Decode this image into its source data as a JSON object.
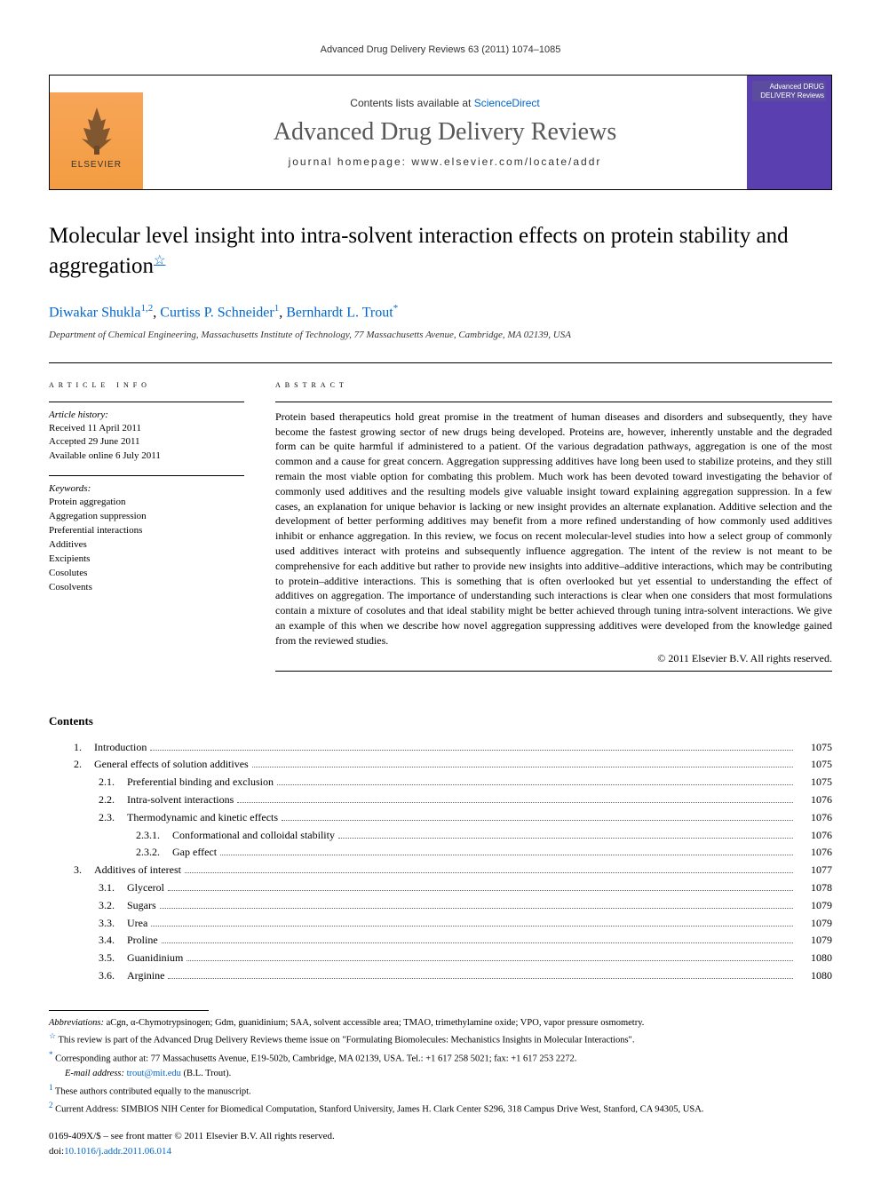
{
  "running_head": "Advanced Drug Delivery Reviews 63 (2011) 1074–1085",
  "header": {
    "contents_prefix": "Contents lists available at ",
    "contents_link": "ScienceDirect",
    "journal": "Advanced Drug Delivery Reviews",
    "homepage_prefix": "journal homepage: ",
    "homepage": "www.elsevier.com/locate/addr",
    "publisher": "ELSEVIER",
    "cover_text": "Advanced DRUG DELIVERY Reviews"
  },
  "title": "Molecular level insight into intra-solvent interaction effects on protein stability and aggregation",
  "title_note_marker": "☆",
  "authors": [
    {
      "name": "Diwakar Shukla",
      "sup": "1,2"
    },
    {
      "name": "Curtiss P. Schneider",
      "sup": "1"
    },
    {
      "name": "Bernhardt L. Trout",
      "sup": "*"
    }
  ],
  "affiliation": "Department of Chemical Engineering, Massachusetts Institute of Technology, 77 Massachusetts Avenue, Cambridge, MA 02139, USA",
  "article_info": {
    "heading": "article info",
    "history_label": "Article history:",
    "history": [
      "Received 11 April 2011",
      "Accepted 29 June 2011",
      "Available online 6 July 2011"
    ],
    "keywords_label": "Keywords:",
    "keywords": [
      "Protein aggregation",
      "Aggregation suppression",
      "Preferential interactions",
      "Additives",
      "Excipients",
      "Cosolutes",
      "Cosolvents"
    ]
  },
  "abstract": {
    "heading": "abstract",
    "text": "Protein based therapeutics hold great promise in the treatment of human diseases and disorders and subsequently, they have become the fastest growing sector of new drugs being developed. Proteins are, however, inherently unstable and the degraded form can be quite harmful if administered to a patient. Of the various degradation pathways, aggregation is one of the most common and a cause for great concern. Aggregation suppressing additives have long been used to stabilize proteins, and they still remain the most viable option for combating this problem. Much work has been devoted toward investigating the behavior of commonly used additives and the resulting models give valuable insight toward explaining aggregation suppression. In a few cases, an explanation for unique behavior is lacking or new insight provides an alternate explanation. Additive selection and the development of better performing additives may benefit from a more refined understanding of how commonly used additives inhibit or enhance aggregation. In this review, we focus on recent molecular-level studies into how a select group of commonly used additives interact with proteins and subsequently influence aggregation. The intent of the review is not meant to be comprehensive for each additive but rather to provide new insights into additive–additive interactions, which may be contributing to protein–additive interactions. This is something that is often overlooked but yet essential to understanding the effect of additives on aggregation. The importance of understanding such interactions is clear when one considers that most formulations contain a mixture of cosolutes and that ideal stability might be better achieved through tuning intra-solvent interactions. We give an example of this when we describe how novel aggregation suppressing additives were developed from the knowledge gained from the reviewed studies.",
    "copyright": "© 2011 Elsevier B.V. All rights reserved."
  },
  "contents": {
    "heading": "Contents",
    "items": [
      {
        "num": "1.",
        "label": "Introduction",
        "page": "1075",
        "indent": 1
      },
      {
        "num": "2.",
        "label": "General effects of solution additives",
        "page": "1075",
        "indent": 1
      },
      {
        "num": "2.1.",
        "label": "Preferential binding and exclusion",
        "page": "1075",
        "indent": 2
      },
      {
        "num": "2.2.",
        "label": "Intra-solvent interactions",
        "page": "1076",
        "indent": 2
      },
      {
        "num": "2.3.",
        "label": "Thermodynamic and kinetic effects",
        "page": "1076",
        "indent": 2
      },
      {
        "num": "2.3.1.",
        "label": "Conformational and colloidal stability",
        "page": "1076",
        "indent": 3
      },
      {
        "num": "2.3.2.",
        "label": "Gap effect",
        "page": "1076",
        "indent": 3
      },
      {
        "num": "3.",
        "label": "Additives of interest",
        "page": "1077",
        "indent": 1
      },
      {
        "num": "3.1.",
        "label": "Glycerol",
        "page": "1078",
        "indent": 2
      },
      {
        "num": "3.2.",
        "label": "Sugars",
        "page": "1079",
        "indent": 2
      },
      {
        "num": "3.3.",
        "label": "Urea",
        "page": "1079",
        "indent": 2
      },
      {
        "num": "3.4.",
        "label": "Proline",
        "page": "1079",
        "indent": 2
      },
      {
        "num": "3.5.",
        "label": "Guanidinium",
        "page": "1080",
        "indent": 2
      },
      {
        "num": "3.6.",
        "label": "Arginine",
        "page": "1080",
        "indent": 2
      }
    ]
  },
  "footer": {
    "abbrev_label": "Abbreviations:",
    "abbrev_text": " aCgn, α-Chymotrypsinogen; Gdm, guanidinium; SAA, solvent accessible area; TMAO, trimethylamine oxide; VPO, vapor pressure osmometry.",
    "notes": [
      {
        "mark": "☆",
        "text": " This review is part of the Advanced Drug Delivery Reviews theme issue on \"Formulating Biomolecules: Mechanistics Insights in Molecular Interactions\"."
      },
      {
        "mark": "*",
        "text": " Corresponding author at: 77 Massachusetts Avenue, E19-502b, Cambridge, MA 02139, USA. Tel.: +1 617 258 5021; fax: +1 617 253 2272."
      }
    ],
    "email_label": "E-mail address: ",
    "email": "trout@mit.edu",
    "email_suffix": " (B.L. Trout).",
    "contrib_notes": [
      {
        "mark": "1",
        "text": " These authors contributed equally to the manuscript."
      },
      {
        "mark": "2",
        "text": " Current Address: SIMBIOS NIH Center for Biomedical Computation, Stanford University, James H. Clark Center S296, 318 Campus Drive West, Stanford, CA 94305, USA."
      }
    ],
    "front_matter": "0169-409X/$ – see front matter © 2011 Elsevier B.V. All rights reserved.",
    "doi_label": "doi:",
    "doi": "10.1016/j.addr.2011.06.014"
  },
  "colors": {
    "link": "#0066cc",
    "elsevier_orange": "#f39c42",
    "cover_purple": "#5a3fb0",
    "text": "#000000",
    "gray_text": "#585858"
  }
}
